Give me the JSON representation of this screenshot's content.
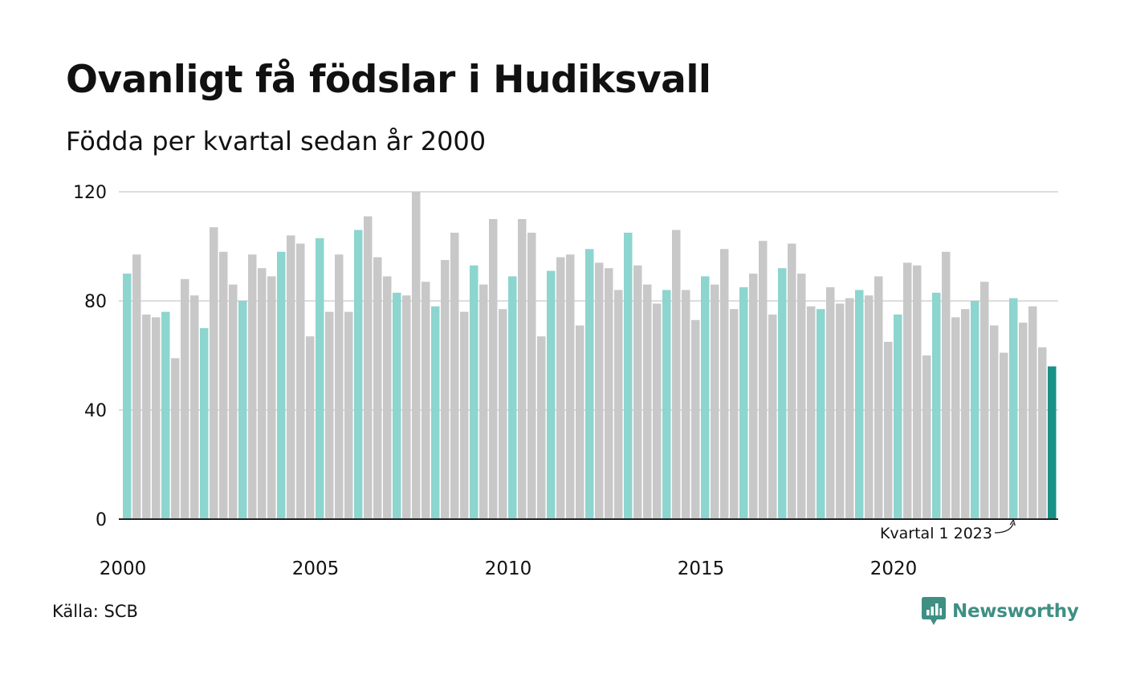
{
  "title": "Ovanligt få födslar i Hudiksvall",
  "subtitle": "Födda per kvartal sedan år 2000",
  "source": "Källa: SCB",
  "brand": "Newsworthy",
  "colors": {
    "q1": "#8dd5cf",
    "other": "#c8c8c8",
    "highlight": "#1a9187",
    "grid": "#dddddd",
    "axis": "#222222",
    "brand": "#3f8f84"
  },
  "chart_data": {
    "type": "bar",
    "ylim": [
      0,
      120
    ],
    "yticks": [
      0,
      40,
      80,
      120
    ],
    "xtick_labels": [
      "2000",
      "2005",
      "2010",
      "2015",
      "2020"
    ],
    "start_year": 2000,
    "annotation": "Kvartal 1 2023",
    "values": [
      90,
      97,
      75,
      74,
      76,
      59,
      88,
      82,
      70,
      107,
      98,
      86,
      80,
      97,
      92,
      89,
      98,
      104,
      101,
      67,
      103,
      76,
      97,
      76,
      106,
      111,
      96,
      89,
      83,
      82,
      120,
      87,
      78,
      95,
      105,
      76,
      93,
      86,
      110,
      77,
      89,
      110,
      105,
      67,
      91,
      96,
      97,
      71,
      99,
      94,
      92,
      84,
      105,
      93,
      86,
      79,
      84,
      106,
      84,
      73,
      89,
      86,
      99,
      77,
      85,
      90,
      102,
      75,
      92,
      101,
      90,
      78,
      77,
      85,
      79,
      81,
      84,
      82,
      89,
      65,
      75,
      94,
      93,
      60,
      83,
      98,
      74,
      77,
      80,
      87,
      71,
      61,
      81,
      72,
      78,
      63,
      56
    ]
  }
}
